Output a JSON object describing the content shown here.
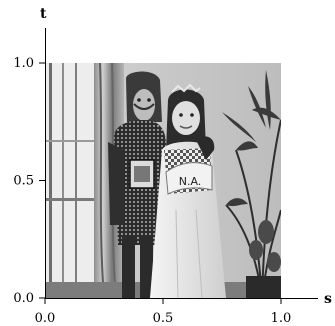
{
  "chart_data": {
    "type": "image",
    "xlabel": "s",
    "ylabel": "t",
    "xlim": [
      0.0,
      1.0
    ],
    "ylim": [
      0.0,
      1.0
    ],
    "xticks": [
      0.0,
      0.5,
      1.0
    ],
    "xtick_labels": [
      "0.0",
      "0.5",
      "1.0"
    ],
    "yticks": [
      0.0,
      0.5,
      1.0
    ],
    "ytick_labels": [
      "0.0",
      "0.5",
      "1.0"
    ],
    "grid": false,
    "image_extent": {
      "s": [
        0.0,
        1.0
      ],
      "t": [
        0.0,
        1.0
      ]
    },
    "image_content": {
      "description": "grayscale photograph of two children in costumes",
      "sash_text": "N.A."
    }
  }
}
